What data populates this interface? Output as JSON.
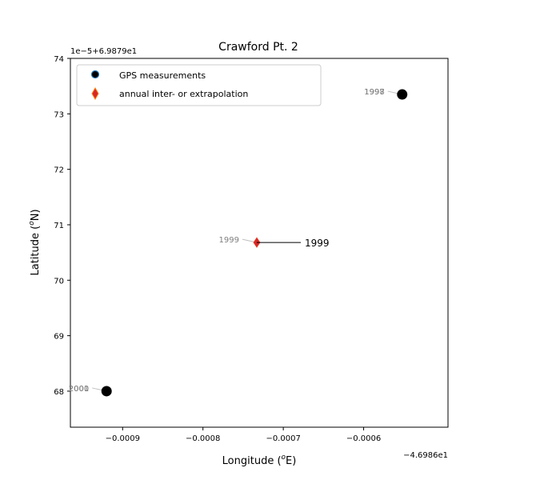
{
  "chart_data": {
    "type": "scatter",
    "title": "Crawford Pt. 2",
    "xlabel_main": "Longitude (",
    "xlabel_sup": "o",
    "xlabel_tail": "E)",
    "ylabel_main": "Latitude (",
    "ylabel_sup": "o",
    "ylabel_tail": "N)",
    "x_offset_label": "−4.6986e1",
    "y_offset_label": "1e−5+6.9879e1",
    "x_ticks": [
      {
        "value": -0.0009,
        "label": "−0.0009"
      },
      {
        "value": -0.0008,
        "label": "−0.0008"
      },
      {
        "value": -0.0007,
        "label": "−0.0007"
      },
      {
        "value": -0.0006,
        "label": "−0.0006"
      }
    ],
    "y_ticks": [
      {
        "value": 68,
        "label": "68"
      },
      {
        "value": 69,
        "label": "69"
      },
      {
        "value": 70,
        "label": "70"
      },
      {
        "value": 71,
        "label": "71"
      },
      {
        "value": 72,
        "label": "72"
      },
      {
        "value": 73,
        "label": "73"
      },
      {
        "value": 74,
        "label": "74"
      }
    ],
    "xlim": [
      -0.000965,
      -0.000495
    ],
    "ylim": [
      67.35,
      74.0
    ],
    "legend_placement": "upper-left",
    "legend": [
      {
        "label": "GPS measurements",
        "marker": "circle",
        "color": "#000000",
        "edge": "#1f77b4"
      },
      {
        "label": "annual inter- or extrapolation",
        "marker": "diamond",
        "color": "#d62728",
        "edge": "#ff7f0e"
      }
    ],
    "series": [
      {
        "name": "GPS measurements",
        "marker": "circle",
        "color": "#000000",
        "points": [
          {
            "x": -0.000552,
            "y": 73.35,
            "labels": [
              "1997",
              "1998"
            ]
          },
          {
            "x": -0.00092,
            "y": 68.0,
            "labels": [
              "2000",
              "2001"
            ]
          }
        ]
      },
      {
        "name": "annual inter- or extrapolation",
        "marker": "diamond",
        "color": "#d62728",
        "points": [
          {
            "x": -0.000733,
            "y": 70.68,
            "labels": [
              "1999"
            ]
          }
        ]
      }
    ],
    "annotation": {
      "text": "1999",
      "x": -0.000733,
      "y": 70.68
    }
  }
}
